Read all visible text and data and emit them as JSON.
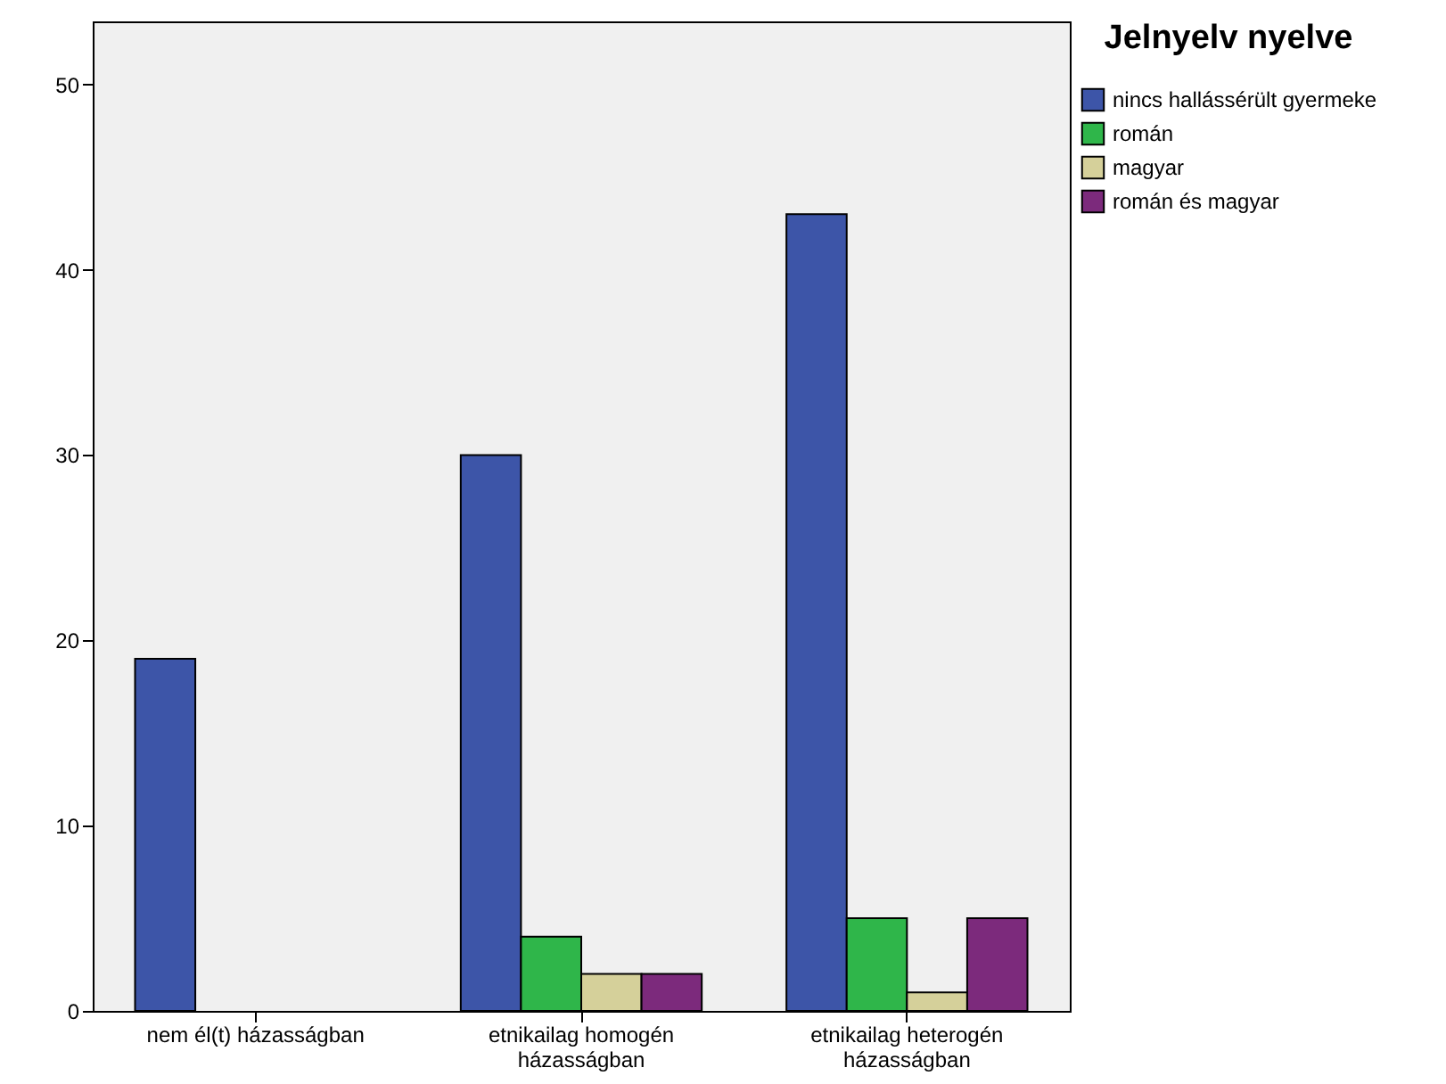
{
  "chart_data": {
    "type": "bar",
    "legend_title": "Jelnyelv nyelve",
    "categories": [
      "nem él(t) házasságban",
      "etnikailag homogén házasságban",
      "etnikailag heterogén házasságban"
    ],
    "series": [
      {
        "name": "nincs hallássérült gyermeke",
        "color": "#3d55a8",
        "values": [
          19,
          30,
          43
        ]
      },
      {
        "name": "román",
        "color": "#2fb64a",
        "values": [
          null,
          4,
          5
        ]
      },
      {
        "name": "magyar",
        "color": "#d5d09a",
        "values": [
          null,
          2,
          1
        ]
      },
      {
        "name": "román és magyar",
        "color": "#7c2a7c",
        "values": [
          null,
          2,
          5
        ]
      }
    ],
    "ylim": [
      0,
      53.4
    ],
    "yticks": [
      0,
      10,
      20,
      30,
      40,
      50
    ],
    "grid": false,
    "legend": "top right"
  }
}
